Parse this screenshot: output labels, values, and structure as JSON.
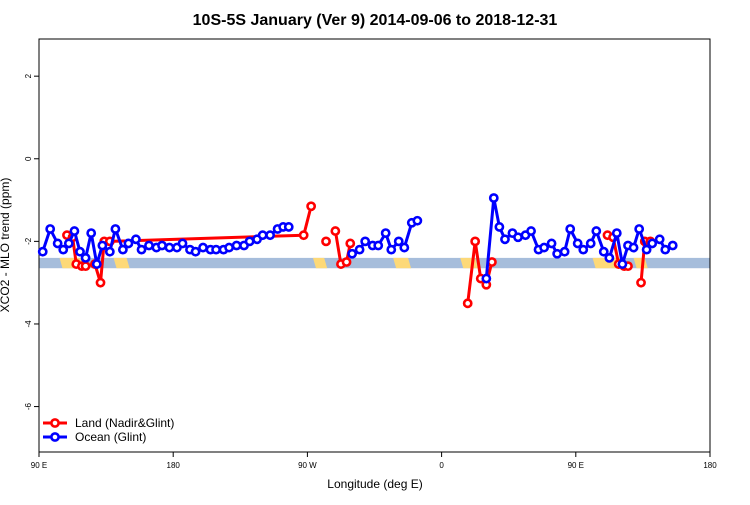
{
  "chart_data": {
    "type": "line",
    "title": "10S-5S January (Ver 9)   2014-09-06 to 2018-12-31",
    "xlabel": "Longitude (deg E)",
    "ylabel": "XCO2 - MLO trend (ppm)",
    "xlim": [
      -90,
      270
    ],
    "ylim": [
      -7.1,
      2.9
    ],
    "x_ticks": [
      {
        "value": -90,
        "label": "90 E"
      },
      {
        "value": -18,
        "label": "180"
      },
      {
        "value": 54,
        "label": "90 W"
      },
      {
        "value": 126,
        "label": "0"
      },
      {
        "value": 198,
        "label": "90 E"
      },
      {
        "value": 270,
        "label": "180"
      }
    ],
    "y_ticks": [
      {
        "value": 2,
        "label": "2"
      },
      {
        "value": 0,
        "label": "0"
      },
      {
        "value": -2,
        "label": "-2"
      },
      {
        "value": -4,
        "label": "-4"
      },
      {
        "value": -6,
        "label": "-6"
      }
    ],
    "legend": {
      "placement": "bottom-left",
      "entries": [
        {
          "label": "Land (Nadir&Glint)",
          "color": "#ff0000"
        },
        {
          "label": "Ocean (Glint)",
          "color": "#0000ff"
        }
      ]
    },
    "surface_band": {
      "y_range": [
        -2.65,
        -2.4
      ],
      "ocean_color": "#a6bddb",
      "land_color": "#fdd978",
      "land_x_ranges": [
        [
          -79,
          -67
        ],
        [
          -50,
          -43
        ],
        [
          57,
          63
        ],
        [
          100,
          108
        ],
        [
          136,
          144
        ],
        [
          207,
          223
        ],
        [
          229,
          235
        ]
      ]
    },
    "series": [
      {
        "name": "Land (Nadir&Glint)",
        "color": "#ff0000",
        "points": [
          [
            -75,
            -1.85
          ],
          [
            -72,
            -1.9
          ],
          [
            -70,
            -2.55
          ],
          [
            -67,
            -2.6
          ],
          [
            -65,
            -2.6
          ],
          [
            -60,
            -2.55
          ],
          [
            -57,
            -3.0
          ],
          [
            -55,
            -2.0
          ],
          [
            -52,
            -2.0
          ],
          [
            52,
            -1.85
          ],
          [
            56,
            -1.15
          ],
          null,
          [
            64,
            -2.0
          ],
          null,
          [
            69,
            -1.75
          ],
          [
            72,
            -2.55
          ],
          [
            75,
            -2.5
          ],
          [
            77,
            -2.05
          ],
          null,
          [
            140,
            -3.5
          ],
          [
            144,
            -2.0
          ],
          [
            147,
            -2.9
          ],
          [
            150,
            -3.05
          ],
          [
            153,
            -2.5
          ],
          null,
          [
            215,
            -1.85
          ],
          [
            218,
            -1.9
          ],
          [
            221,
            -2.55
          ],
          [
            224,
            -2.6
          ],
          [
            226,
            -2.6
          ],
          null,
          [
            233,
            -3.0
          ],
          [
            235,
            -2.0
          ],
          [
            238,
            -2.0
          ]
        ]
      },
      {
        "name": "Ocean (Glint)",
        "color": "#0000ff",
        "points": [
          [
            -88,
            -2.25
          ],
          [
            -84,
            -1.7
          ],
          [
            -80,
            -2.05
          ],
          [
            -77,
            -2.2
          ],
          [
            -74,
            -2.05
          ],
          [
            -71,
            -1.75
          ],
          [
            -68,
            -2.25
          ],
          [
            -65,
            -2.4
          ],
          [
            -62,
            -1.8
          ],
          [
            -59,
            -2.55
          ],
          [
            -56,
            -2.1
          ],
          [
            -52,
            -2.25
          ],
          [
            -49,
            -1.7
          ],
          [
            -45,
            -2.2
          ],
          [
            -42,
            -2.05
          ],
          [
            -38,
            -1.95
          ],
          [
            -35,
            -2.2
          ],
          [
            -31,
            -2.1
          ],
          [
            -27,
            -2.15
          ],
          [
            -24,
            -2.1
          ],
          [
            -20,
            -2.15
          ],
          [
            -16,
            -2.15
          ],
          [
            -13,
            -2.05
          ],
          [
            -9,
            -2.2
          ],
          [
            -6,
            -2.25
          ],
          [
            -2,
            -2.15
          ],
          [
            2,
            -2.2
          ],
          [
            5,
            -2.2
          ],
          [
            9,
            -2.2
          ],
          [
            12,
            -2.15
          ],
          [
            16,
            -2.1
          ],
          [
            20,
            -2.1
          ],
          [
            23,
            -2.0
          ],
          [
            27,
            -1.95
          ],
          [
            30,
            -1.85
          ],
          [
            34,
            -1.85
          ],
          [
            38,
            -1.7
          ],
          [
            41,
            -1.65
          ],
          [
            44,
            -1.65
          ],
          null,
          [
            78,
            -2.3
          ],
          [
            82,
            -2.2
          ],
          [
            85,
            -2.0
          ],
          [
            89,
            -2.1
          ],
          [
            92,
            -2.1
          ],
          [
            96,
            -1.8
          ],
          [
            99,
            -2.2
          ],
          [
            103,
            -2.0
          ],
          [
            106,
            -2.15
          ],
          [
            110,
            -1.55
          ],
          [
            113,
            -1.5
          ],
          null,
          [
            150,
            -2.9
          ],
          [
            154,
            -0.95
          ],
          [
            157,
            -1.65
          ],
          [
            160,
            -1.95
          ],
          [
            164,
            -1.8
          ],
          [
            167,
            -1.9
          ],
          [
            171,
            -1.85
          ],
          [
            174,
            -1.75
          ],
          [
            178,
            -2.2
          ],
          [
            181,
            -2.15
          ],
          [
            185,
            -2.05
          ],
          [
            188,
            -2.3
          ],
          [
            192,
            -2.25
          ],
          [
            195,
            -1.7
          ],
          [
            199,
            -2.05
          ],
          [
            202,
            -2.2
          ],
          [
            206,
            -2.05
          ],
          [
            209,
            -1.75
          ],
          [
            213,
            -2.25
          ],
          [
            216,
            -2.4
          ],
          [
            220,
            -1.8
          ],
          [
            223,
            -2.55
          ],
          [
            226,
            -2.1
          ],
          [
            229,
            -2.15
          ],
          [
            232,
            -1.7
          ],
          [
            236,
            -2.2
          ],
          [
            239,
            -2.05
          ],
          [
            243,
            -1.95
          ],
          [
            246,
            -2.2
          ],
          [
            250,
            -2.1
          ]
        ]
      }
    ]
  }
}
